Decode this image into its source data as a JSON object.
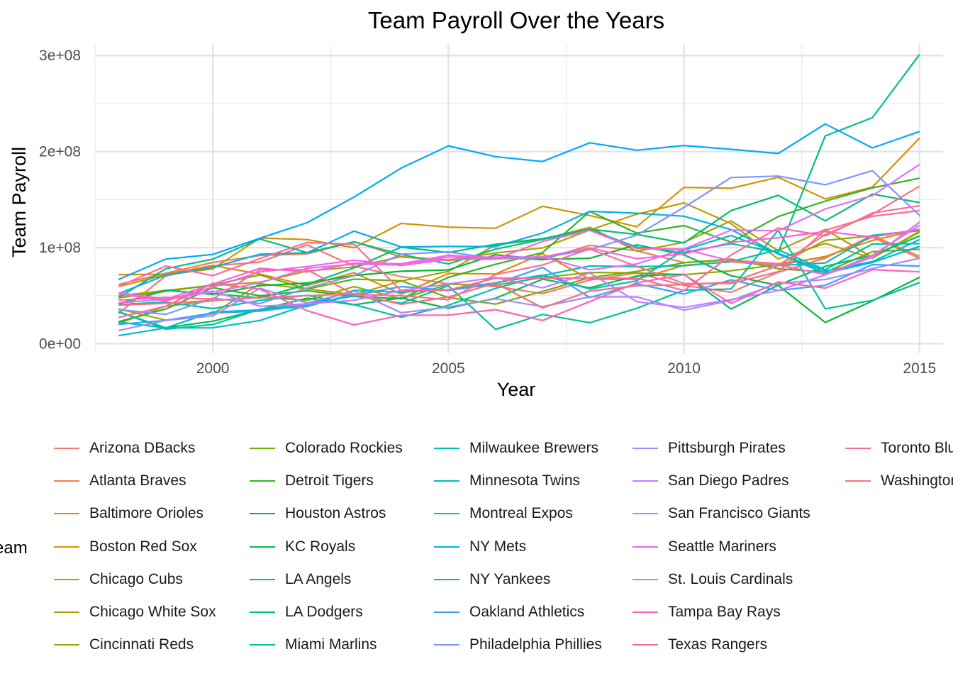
{
  "chart_data": {
    "type": "line",
    "title": "Team Payroll Over the Years",
    "xlabel": "Year",
    "ylabel": "Team Payroll",
    "xlim": [
      1997.5,
      2015.5
    ],
    "ylim": [
      -10000000,
      312000000
    ],
    "x_ticks": [
      2000,
      2005,
      2010,
      2015
    ],
    "x_tick_labels": [
      "2000",
      "2005",
      "2010",
      "2015"
    ],
    "y_ticks": [
      0,
      100000000,
      200000000,
      300000000
    ],
    "y_tick_labels": [
      "0e+00",
      "1e+08",
      "2e+08",
      "3e+08"
    ],
    "grid": true,
    "legend_title": "Team",
    "legend_position": "bottom",
    "x": [
      1998,
      1999,
      2000,
      2001,
      2002,
      2003,
      2004,
      2005,
      2006,
      2007,
      2008,
      2009,
      2010,
      2011,
      2012,
      2013,
      2014,
      2015
    ],
    "series": [
      {
        "name": "Arizona DBacks",
        "color": "#F8766D",
        "values": [
          31600000,
          70500000,
          81000000,
          85000000,
          102800000,
          80600000,
          69800000,
          62300000,
          59700000,
          52100000,
          66200000,
          73600000,
          60700000,
          53600000,
          74300000,
          89100000,
          112700000,
          91000000
        ]
      },
      {
        "name": "Atlanta Braves",
        "color": "#F07E50",
        "values": [
          61700000,
          73300000,
          84500000,
          91800000,
          93500000,
          106200000,
          90200000,
          86500000,
          90200000,
          87300000,
          102400000,
          96700000,
          84400000,
          87000000,
          83300000,
          89800000,
          110900000,
          89000000
        ]
      },
      {
        "name": "Baltimore Orioles",
        "color": "#E38900",
        "values": [
          71900000,
          72200000,
          81400000,
          72400000,
          60500000,
          73900000,
          51600000,
          73100000,
          72600000,
          93600000,
          67200000,
          67100000,
          81600000,
          85300000,
          81400000,
          90800000,
          107400000,
          118700000
        ]
      },
      {
        "name": "Boston Red Sox",
        "color": "#D39200",
        "values": [
          59500000,
          71700000,
          77900000,
          110000000,
          108400000,
          99900000,
          125200000,
          121300000,
          120100000,
          143000000,
          133400000,
          121700000,
          162700000,
          161800000,
          173200000,
          150700000,
          163000000,
          214000000
        ]
      },
      {
        "name": "Chicago Cubs",
        "color": "#C09B00",
        "values": [
          49800000,
          55400000,
          60500000,
          64000000,
          75700000,
          79900000,
          90600000,
          87200000,
          94400000,
          99700000,
          118300000,
          134800000,
          146600000,
          125000000,
          88200000,
          104300000,
          89000000,
          117000000
        ]
      },
      {
        "name": "Chicago White Sox",
        "color": "#AAA300",
        "values": [
          36200000,
          24500000,
          31100000,
          62400000,
          57100000,
          51000000,
          65200000,
          75200000,
          102800000,
          108700000,
          121200000,
          96100000,
          105500000,
          127800000,
          96900000,
          118900000,
          89700000,
          116000000
        ]
      },
      {
        "name": "Cincinnati Reds",
        "color": "#8FAA00",
        "values": [
          21100000,
          38900000,
          44800000,
          48500000,
          45100000,
          59400000,
          46600000,
          61900000,
          60900000,
          68900000,
          74100000,
          73700000,
          71800000,
          75900000,
          82200000,
          107500000,
          112300000,
          117700000
        ]
      },
      {
        "name": "Colorado Rockies",
        "color": "#6BB100",
        "values": [
          47700000,
          54400000,
          61100000,
          71500000,
          56900000,
          67200000,
          65400000,
          48000000,
          41200000,
          54400000,
          68700000,
          75200000,
          84200000,
          88100000,
          78100000,
          74400000,
          95800000,
          98300000
        ]
      },
      {
        "name": "Detroit Tigers",
        "color": "#31B425",
        "values": [
          22900000,
          36000000,
          58300000,
          49800000,
          55100000,
          49200000,
          46800000,
          69000000,
          82600000,
          94800000,
          137700000,
          115100000,
          122900000,
          105700000,
          132300000,
          148400000,
          162200000,
          172300000
        ]
      },
      {
        "name": "Houston Astros",
        "color": "#00B938",
        "values": [
          41600000,
          55600000,
          51300000,
          60400000,
          63100000,
          71000000,
          75400000,
          76800000,
          92600000,
          87800000,
          88900000,
          102900000,
          92400000,
          70700000,
          60700000,
          22100000,
          44500000,
          69100000
        ]
      },
      {
        "name": "KC Royals",
        "color": "#00BC56",
        "values": [
          32900000,
          16500000,
          23400000,
          35400000,
          47300000,
          40500000,
          47600000,
          36900000,
          47300000,
          67100000,
          58200000,
          70500000,
          72300000,
          36100000,
          60900000,
          80500000,
          92000000,
          112100000
        ]
      },
      {
        "name": "LA Angels",
        "color": "#00BE70",
        "values": [
          41300000,
          55400000,
          52000000,
          47500000,
          61700000,
          79000000,
          100500000,
          94900000,
          103500000,
          109300000,
          119200000,
          113700000,
          104900000,
          138500000,
          154500000,
          127900000,
          155700000,
          146900000
        ]
      },
      {
        "name": "LA Dodgers",
        "color": "#00C087",
        "values": [
          48000000,
          78000000,
          88000000,
          109000000,
          94800000,
          105900000,
          92900000,
          83000000,
          98400000,
          108500000,
          118600000,
          100500000,
          95000000,
          104200000,
          95100000,
          216300000,
          235300000,
          301000000
        ]
      },
      {
        "name": "Miami Marlins",
        "color": "#00C19C",
        "values": [
          33400000,
          15100000,
          19900000,
          35800000,
          41500000,
          49500000,
          42100000,
          60400000,
          14900000,
          30500000,
          21800000,
          36800000,
          55600000,
          56900000,
          118100000,
          36300000,
          45100000,
          63600000
        ]
      },
      {
        "name": "Milwaukee Brewers",
        "color": "#00C0B2",
        "values": [
          40700000,
          43300000,
          36500000,
          45000000,
          50300000,
          40600000,
          27500000,
          39900000,
          57600000,
          70900000,
          80900000,
          80200000,
          81100000,
          85500000,
          97700000,
          76900000,
          103800000,
          104200000
        ]
      },
      {
        "name": "Minnesota Twins",
        "color": "#00BDC4",
        "values": [
          22500000,
          16400000,
          16500000,
          24100000,
          40200000,
          55500000,
          53600000,
          56200000,
          63400000,
          71400000,
          56900000,
          65300000,
          97600000,
          112700000,
          94100000,
          75600000,
          85500000,
          108300000
        ]
      },
      {
        "name": "Montreal Expos",
        "color": "#00B8D6",
        "values": [
          8300000,
          16400000,
          32900000,
          35200000,
          38700000,
          51900000,
          41200000,
          48600000,
          63100000,
          37300000,
          54800000,
          60300000,
          61400000,
          63900000,
          81300000,
          84000000,
          112700000,
          118200000
        ]
      },
      {
        "name": "NY Mets",
        "color": "#00B2E5",
        "values": [
          52100000,
          71300000,
          79500000,
          93200000,
          94600000,
          117200000,
          100600000,
          101300000,
          101100000,
          115200000,
          137800000,
          135800000,
          132700000,
          118800000,
          93400000,
          73300000,
          84600000,
          101300000
        ]
      },
      {
        "name": "NY Yankees",
        "color": "#00A9FF",
        "values": [
          66800000,
          88100000,
          92900000,
          109800000,
          125900000,
          152700000,
          182800000,
          205900000,
          194700000,
          189600000,
          209100000,
          201400000,
          206300000,
          202300000,
          198000000,
          228800000,
          203800000,
          220900000
        ]
      },
      {
        "name": "Oakland Athletics",
        "color": "#35A2FF",
        "values": [
          20100000,
          24200000,
          31900000,
          33800000,
          40000000,
          50300000,
          59400000,
          55400000,
          62200000,
          79400000,
          47900000,
          62300000,
          51700000,
          66500000,
          55400000,
          60700000,
          82300000,
          80800000
        ]
      },
      {
        "name": "Philadelphia Phillies",
        "color": "#7C96FF",
        "values": [
          35400000,
          30500000,
          47300000,
          41700000,
          57900000,
          70800000,
          93200000,
          95500000,
          88300000,
          89400000,
          97900000,
          113000000,
          141900000,
          172900000,
          174500000,
          165400000,
          180100000,
          133500000
        ]
      },
      {
        "name": "Pittsburgh Pirates",
        "color": "#A58AFF",
        "values": [
          13700000,
          24200000,
          28900000,
          57800000,
          42300000,
          54800000,
          32200000,
          38100000,
          46700000,
          38500000,
          48700000,
          48700000,
          34900000,
          45000000,
          62900000,
          66800000,
          78100000,
          88900000
        ]
      },
      {
        "name": "San Diego Padres",
        "color": "#C77CFF",
        "values": [
          53100000,
          46500000,
          54800000,
          38900000,
          41400000,
          45200000,
          55400000,
          62200000,
          68900000,
          58100000,
          73700000,
          43700000,
          37800000,
          45900000,
          55200000,
          71700000,
          90100000,
          126600000
        ]
      },
      {
        "name": "San Francisco Giants",
        "color": "#DF70F8",
        "values": [
          42600000,
          46100000,
          53700000,
          63300000,
          78500000,
          82900000,
          82000000,
          90200000,
          90100000,
          90200000,
          76900000,
          83000000,
          98600000,
          118200000,
          117600000,
          140300000,
          154200000,
          186600000
        ]
      },
      {
        "name": "Seattle Mariners",
        "color": "#F066EA",
        "values": [
          52000000,
          44400000,
          58900000,
          74700000,
          80300000,
          86900000,
          81500000,
          87800000,
          88000000,
          106500000,
          118000000,
          98900000,
          98400000,
          86100000,
          82000000,
          72000000,
          92100000,
          123200000
        ]
      },
      {
        "name": "St. Louis Cardinals",
        "color": "#FA62DB",
        "values": [
          52500000,
          46200000,
          62000000,
          78500000,
          74700000,
          83800000,
          83200000,
          92100000,
          88900000,
          90300000,
          99600000,
          88500000,
          93500000,
          105400000,
          110300000,
          116700000,
          111000000,
          119200000
        ]
      },
      {
        "name": "Tampa Bay Rays",
        "color": "#FF62BC",
        "values": [
          27300000,
          38900000,
          62800000,
          56700000,
          34400000,
          19600000,
          29600000,
          29700000,
          35400000,
          24100000,
          43800000,
          63300000,
          71900000,
          41900000,
          64200000,
          57900000,
          77100000,
          74800000
        ]
      },
      {
        "name": "Texas Rangers",
        "color": "#FF67A4",
        "values": [
          59600000,
          80800000,
          70800000,
          88600000,
          105300000,
          103500000,
          55100000,
          55800000,
          68200000,
          68300000,
          68000000,
          68200000,
          55300000,
          92300000,
          120500000,
          112300000,
          136000000,
          143700000
        ]
      },
      {
        "name": "Toronto Blue Jays",
        "color": "#FF6C91",
        "values": [
          45300000,
          48300000,
          46400000,
          76900000,
          76900000,
          51300000,
          50000000,
          45700000,
          71900000,
          81900000,
          98600000,
          80500000,
          62700000,
          62600000,
          75000000,
          118200000,
          132600000,
          138500000
        ]
      },
      {
        "name": "Washington Nationals",
        "color": "#FC717F",
        "values": [
          40000000,
          42000000,
          45000000,
          48000000,
          50000000,
          51900000,
          40900000,
          48600000,
          63100000,
          37300000,
          54800000,
          60300000,
          61400000,
          63900000,
          81300000,
          113700000,
          134700000,
          164000000
        ]
      }
    ]
  }
}
